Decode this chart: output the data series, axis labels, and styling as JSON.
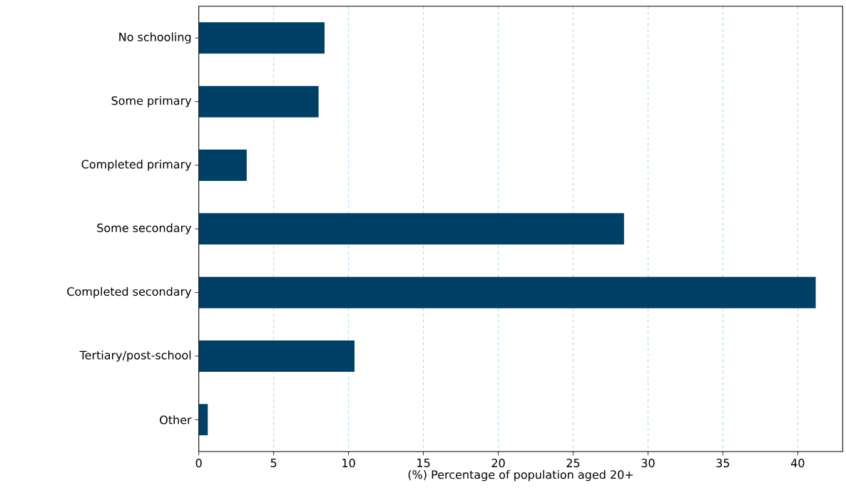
{
  "chart_data": {
    "type": "bar",
    "orientation": "horizontal",
    "xlabel": "(%) Percentage of population aged 20+",
    "categories": [
      "No schooling",
      "Some primary",
      "Completed primary",
      "Some secondary",
      "Completed secondary",
      "Tertiary/post-school",
      "Other"
    ],
    "values": [
      8.4,
      8.0,
      3.2,
      28.4,
      41.2,
      10.4,
      0.6
    ],
    "color": "#003f66",
    "xlim": [
      0,
      43
    ],
    "xticks": [
      0,
      5,
      10,
      15,
      20,
      25,
      30,
      35,
      40
    ],
    "grid": "x"
  }
}
